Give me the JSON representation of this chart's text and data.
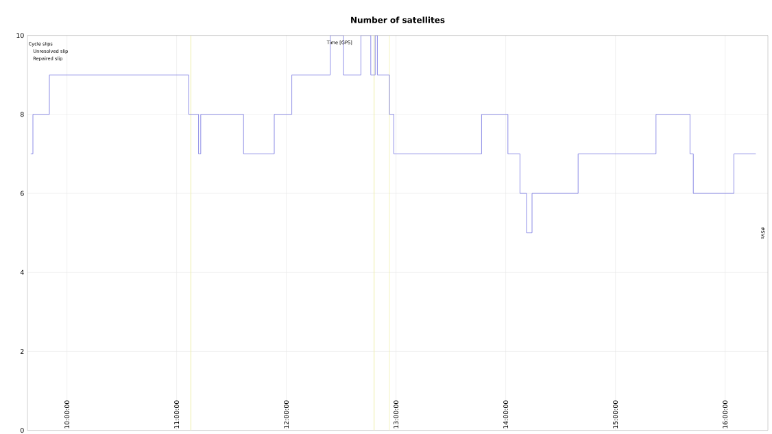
{
  "chart_data": {
    "type": "step",
    "title": "Number of satellites",
    "xlabel": "Time [GPS]",
    "ylabel": "#SVs",
    "annotations": [
      "Cycle slips",
      "Unresolved slip",
      "Repaired slip"
    ],
    "x": [
      9.67,
      9.69,
      9.84,
      11.11,
      11.2,
      11.22,
      11.61,
      11.89,
      12.05,
      12.4,
      12.52,
      12.68,
      12.77,
      12.81,
      12.83,
      12.94,
      12.98,
      13.78,
      14.02,
      14.13,
      14.19,
      14.24,
      14.66,
      15.37,
      15.68,
      15.71,
      16.08,
      16.28
    ],
    "series": [
      {
        "color": "#7070e0",
        "values": [
          7,
          8,
          9,
          8,
          7,
          8,
          7,
          8,
          9,
          10,
          9,
          10,
          9,
          10,
          9,
          8,
          7,
          8,
          7,
          6,
          5,
          6,
          7,
          8,
          7,
          6,
          7,
          7
        ]
      }
    ],
    "xlim": [
      9.64,
      16.39
    ],
    "ylim": [
      0,
      10
    ],
    "xticks": [
      {
        "value": 10,
        "label": "10:00:00"
      },
      {
        "value": 11,
        "label": "11:00:00"
      },
      {
        "value": 12,
        "label": "12:00:00"
      },
      {
        "value": 13,
        "label": "13:00:00"
      },
      {
        "value": 14,
        "label": "14:00:00"
      },
      {
        "value": 15,
        "label": "15:00:00"
      },
      {
        "value": 16,
        "label": "16:00:00"
      }
    ],
    "yticks": [
      0,
      2,
      4,
      6,
      8,
      10
    ],
    "ref_lines": [
      {
        "axis": "x",
        "value": 11.13,
        "color": "#eeeeaa"
      },
      {
        "axis": "x",
        "value": 12.8,
        "color": "#eeeeaa"
      },
      {
        "axis": "x",
        "value": 12.94,
        "color": "#eeeeaa"
      }
    ],
    "grid": true,
    "marker": "none",
    "line_style": "solid"
  }
}
